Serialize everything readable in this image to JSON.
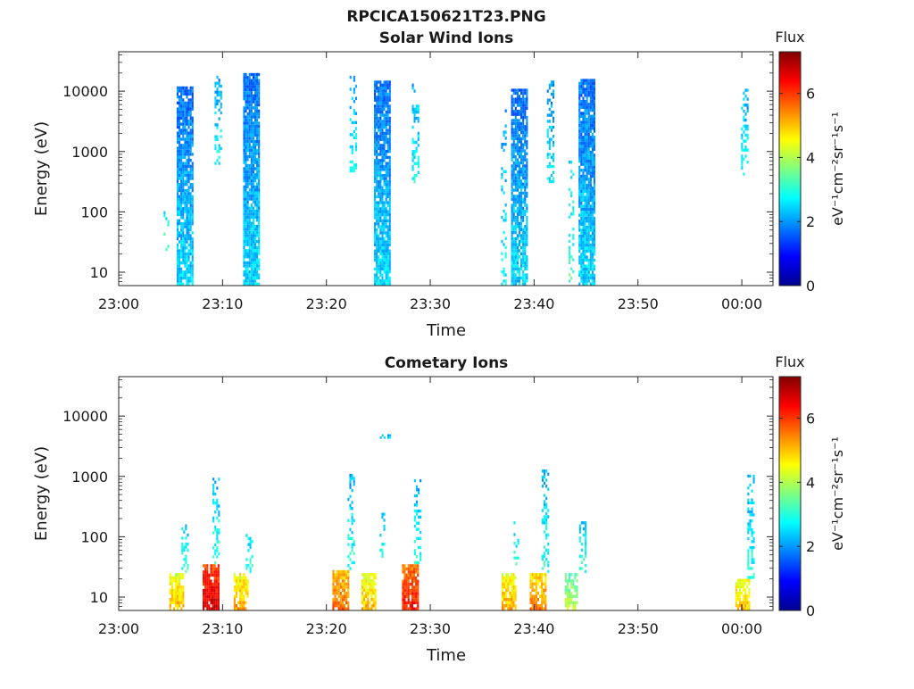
{
  "figure": {
    "title": "RPCICA150621T23.PNG"
  },
  "chart_data": [
    {
      "type": "heatmap",
      "title": "Solar Wind Ions",
      "xlabel": "Time",
      "ylabel": "Energy (eV)",
      "y_scale": "log",
      "ylim": [
        6,
        45000
      ],
      "xlim": [
        "23:00",
        "00:03"
      ],
      "x_ticks": [
        "23:00",
        "23:10",
        "23:20",
        "23:30",
        "23:40",
        "23:50",
        "00:00"
      ],
      "y_ticks": [
        "10",
        "100",
        "1000",
        "10000"
      ],
      "colorbar": {
        "title": "Flux",
        "label": "eV⁻¹cm⁻²sr⁻¹s⁻¹",
        "range": [
          0,
          7.3
        ],
        "ticks": [
          "0",
          "2",
          "4",
          "6"
        ],
        "colormap": "jet"
      },
      "bursts": [
        {
          "time": "23:04.5",
          "e_min": 20,
          "e_max": 130,
          "level": 2.8,
          "density": 0.25
        },
        {
          "time": "23:06.3",
          "e_min": 6,
          "e_max": 12000,
          "level": 2.0,
          "density": 0.85
        },
        {
          "time": "23:09.5",
          "e_min": 600,
          "e_max": 18000,
          "level": 2.3,
          "density": 0.35
        },
        {
          "time": "23:12.7",
          "e_min": 6,
          "e_max": 20000,
          "level": 2.0,
          "density": 0.9
        },
        {
          "time": "23:22.5",
          "e_min": 450,
          "e_max": 18000,
          "level": 2.3,
          "density": 0.35
        },
        {
          "time": "23:25.3",
          "e_min": 6,
          "e_max": 15000,
          "level": 2.0,
          "density": 0.9
        },
        {
          "time": "23:28.5",
          "e_min": 300,
          "e_max": 15000,
          "level": 2.4,
          "density": 0.35
        },
        {
          "time": "23:37.0",
          "e_min": 6,
          "e_max": 5000,
          "level": 2.3,
          "density": 0.2
        },
        {
          "time": "23:38.5",
          "e_min": 6,
          "e_max": 11000,
          "level": 2.0,
          "density": 0.85
        },
        {
          "time": "23:41.5",
          "e_min": 300,
          "e_max": 15000,
          "level": 2.2,
          "density": 0.4
        },
        {
          "time": "23:43.5",
          "e_min": 6,
          "e_max": 1000,
          "level": 2.8,
          "density": 0.25
        },
        {
          "time": "23:45.0",
          "e_min": 6,
          "e_max": 16000,
          "level": 2.0,
          "density": 0.9
        },
        {
          "time": "00:00.2",
          "e_min": 400,
          "e_max": 11000,
          "level": 2.4,
          "density": 0.4
        }
      ]
    },
    {
      "type": "heatmap",
      "title": "Cometary Ions",
      "xlabel": "Time",
      "ylabel": "Energy (eV)",
      "y_scale": "log",
      "ylim": [
        6,
        45000
      ],
      "xlim": [
        "23:00",
        "00:03"
      ],
      "x_ticks": [
        "23:00",
        "23:10",
        "23:20",
        "23:30",
        "23:40",
        "23:50",
        "00:00"
      ],
      "y_ticks": [
        "10",
        "100",
        "1000",
        "10000"
      ],
      "colorbar": {
        "title": "Flux",
        "label": "eV⁻¹cm⁻²sr⁻¹s⁻¹",
        "range": [
          0,
          7.3
        ],
        "ticks": [
          "0",
          "2",
          "4",
          "6"
        ],
        "colormap": "jet"
      },
      "bursts": [
        {
          "time": "23:05.5",
          "e_min": 6,
          "e_max": 25,
          "level": 4.6,
          "density": 0.8
        },
        {
          "time": "23:06.3",
          "e_min": 25,
          "e_max": 180,
          "level": 2.6,
          "density": 0.4
        },
        {
          "time": "23:08.8",
          "e_min": 6,
          "e_max": 35,
          "level": 6.2,
          "density": 0.9
        },
        {
          "time": "23:09.3",
          "e_min": 35,
          "e_max": 950,
          "level": 2.5,
          "density": 0.4
        },
        {
          "time": "23:11.7",
          "e_min": 6,
          "e_max": 25,
          "level": 4.8,
          "density": 0.8
        },
        {
          "time": "23:12.5",
          "e_min": 25,
          "e_max": 140,
          "level": 2.6,
          "density": 0.4
        },
        {
          "time": "23:21.3",
          "e_min": 6,
          "e_max": 28,
          "level": 5.2,
          "density": 0.85
        },
        {
          "time": "23:22.3",
          "e_min": 28,
          "e_max": 1100,
          "level": 2.5,
          "density": 0.35
        },
        {
          "time": "23:24.0",
          "e_min": 6,
          "e_max": 25,
          "level": 4.6,
          "density": 0.8
        },
        {
          "time": "23:25.3",
          "e_min": 40,
          "e_max": 250,
          "level": 2.6,
          "density": 0.3
        },
        {
          "time": "23:25.6",
          "e_min": 4200,
          "e_max": 5000,
          "level": 2.0,
          "density": 0.6
        },
        {
          "time": "23:28.0",
          "e_min": 6,
          "e_max": 35,
          "level": 5.8,
          "density": 0.9
        },
        {
          "time": "23:28.7",
          "e_min": 35,
          "e_max": 900,
          "level": 2.5,
          "density": 0.4
        },
        {
          "time": "23:37.5",
          "e_min": 6,
          "e_max": 25,
          "level": 4.7,
          "density": 0.8
        },
        {
          "time": "23:38.2",
          "e_min": 30,
          "e_max": 180,
          "level": 2.6,
          "density": 0.3
        },
        {
          "time": "23:40.3",
          "e_min": 6,
          "e_max": 25,
          "level": 5.0,
          "density": 0.85
        },
        {
          "time": "23:41.0",
          "e_min": 25,
          "e_max": 1300,
          "level": 2.5,
          "density": 0.4
        },
        {
          "time": "23:43.5",
          "e_min": 6,
          "e_max": 25,
          "level": 3.6,
          "density": 0.7
        },
        {
          "time": "23:44.6",
          "e_min": 25,
          "e_max": 180,
          "level": 2.6,
          "density": 0.4
        },
        {
          "time": "00:00.0",
          "e_min": 6,
          "e_max": 20,
          "level": 4.6,
          "density": 0.8
        },
        {
          "time": "00:00.8",
          "e_min": 20,
          "e_max": 1200,
          "level": 2.5,
          "density": 0.4
        }
      ]
    }
  ]
}
